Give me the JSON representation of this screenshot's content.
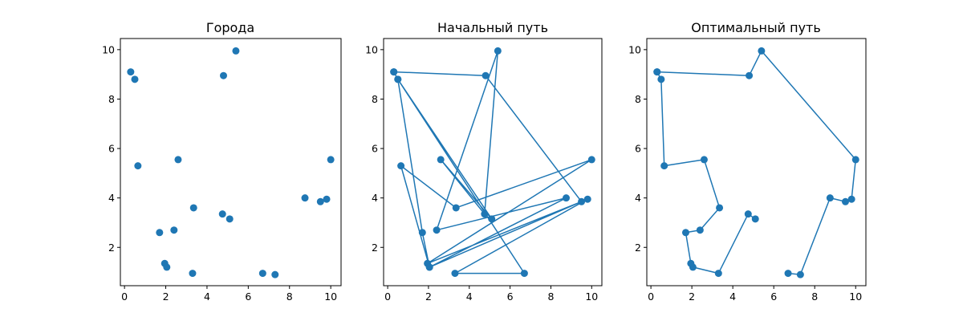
{
  "colors": {
    "marker": "#1f77b4",
    "line": "#1f77b4",
    "axes": "#000000",
    "background": "#ffffff"
  },
  "chart_data": [
    {
      "type": "scatter",
      "title": "Города",
      "xlabel": "",
      "ylabel": "",
      "xlim": [
        -0.2,
        10.5
      ],
      "ylim": [
        0.45,
        10.45
      ],
      "xticks": [
        0,
        2,
        4,
        6,
        8,
        10
      ],
      "yticks": [
        2,
        4,
        6,
        8,
        10
      ],
      "grid": false,
      "series": [
        {
          "x": [
            0.3,
            0.5,
            0.65,
            1.7,
            1.95,
            2.05,
            2.4,
            2.6,
            3.3,
            3.35,
            4.75,
            4.8,
            5.1,
            5.4,
            6.7,
            7.3,
            8.75,
            9.5,
            9.8,
            10.0
          ],
          "y": [
            9.1,
            8.8,
            5.3,
            2.6,
            1.35,
            1.2,
            2.7,
            5.55,
            0.95,
            3.6,
            3.35,
            8.95,
            3.15,
            9.95,
            0.95,
            0.9,
            4.0,
            3.85,
            3.95,
            5.55
          ]
        }
      ]
    },
    {
      "type": "line",
      "title": "Начальный путь",
      "xlabel": "",
      "ylabel": "",
      "xlim": [
        -0.2,
        10.5
      ],
      "ylim": [
        0.45,
        10.45
      ],
      "xticks": [
        0,
        2,
        4,
        6,
        8,
        10
      ],
      "yticks": [
        2,
        4,
        6,
        8,
        10
      ],
      "grid": false,
      "markers": true,
      "series": [
        {
          "x": [
            0.3,
            4.8,
            9.5,
            2.05,
            0.65,
            3.35,
            10.0,
            1.95,
            9.8,
            3.3,
            6.7,
            0.5,
            1.7,
            2.05,
            8.75,
            2.4,
            5.4,
            4.75,
            2.6,
            5.1,
            0.5,
            0.3
          ],
          "y": [
            9.1,
            8.95,
            3.85,
            1.2,
            5.3,
            3.6,
            5.55,
            1.35,
            3.95,
            0.95,
            0.95,
            8.8,
            2.6,
            1.2,
            4.0,
            2.7,
            9.95,
            3.35,
            5.55,
            3.15,
            8.8,
            9.1
          ]
        }
      ]
    },
    {
      "type": "line",
      "title": "Оптимальный путь",
      "xlabel": "",
      "ylabel": "",
      "xlim": [
        -0.2,
        10.5
      ],
      "ylim": [
        0.45,
        10.45
      ],
      "xticks": [
        0,
        2,
        4,
        6,
        8,
        10
      ],
      "yticks": [
        2,
        4,
        6,
        8,
        10
      ],
      "grid": false,
      "markers": true,
      "series": [
        {
          "x": [
            0.3,
            4.8,
            5.4,
            10.0,
            9.8,
            9.5,
            8.75,
            7.3,
            6.7
          ],
          "y": [
            9.1,
            8.95,
            9.95,
            5.55,
            3.95,
            3.85,
            4.0,
            0.9,
            0.95
          ]
        },
        {
          "x": [
            5.1,
            4.75,
            3.3,
            2.05,
            1.95,
            1.7,
            2.4,
            3.35,
            2.6,
            0.65,
            0.5,
            0.3
          ],
          "y": [
            3.15,
            3.35,
            0.95,
            1.2,
            1.35,
            2.6,
            2.7,
            3.6,
            5.55,
            5.3,
            8.8,
            9.1
          ]
        }
      ]
    }
  ]
}
